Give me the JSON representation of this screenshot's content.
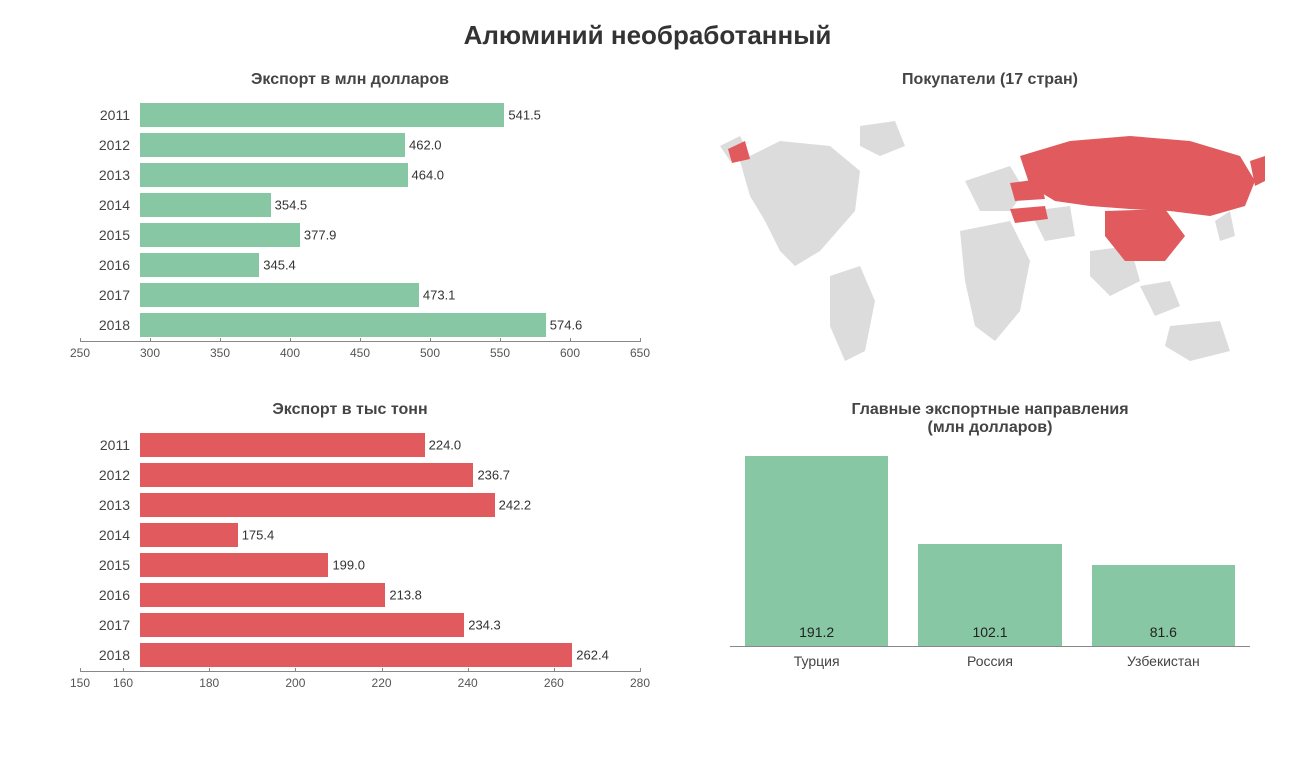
{
  "main_title": "Алюминий необработанный",
  "export_usd": {
    "title": "Экспорт в млн долларов",
    "type": "horizontal-bar",
    "categories": [
      "2011",
      "2012",
      "2013",
      "2014",
      "2015",
      "2016",
      "2017",
      "2018"
    ],
    "values": [
      541.5,
      462.0,
      464.0,
      354.5,
      377.9,
      345.4,
      473.1,
      574.6
    ],
    "value_labels": [
      "541.5",
      "462.0",
      "464.0",
      "354.5",
      "377.9",
      "345.4",
      "473.1",
      "574.6"
    ],
    "bar_color": "#87c7a3",
    "xlim": [
      250,
      650
    ],
    "xticks": [
      250,
      300,
      350,
      400,
      450,
      500,
      550,
      600,
      650
    ],
    "xtick_labels": [
      "250",
      "300",
      "350",
      "400",
      "450",
      "500",
      "550",
      "600",
      "650"
    ],
    "label_fontsize": 14,
    "value_fontsize": 13,
    "axis_color": "#888888",
    "background_color": "#ffffff"
  },
  "export_tons": {
    "title": "Экспорт в тыс тонн",
    "type": "horizontal-bar",
    "categories": [
      "2011",
      "2012",
      "2013",
      "2014",
      "2015",
      "2016",
      "2017",
      "2018"
    ],
    "values": [
      224.0,
      236.7,
      242.2,
      175.4,
      199.0,
      213.8,
      234.3,
      262.4
    ],
    "value_labels": [
      "224.0",
      "236.7",
      "242.2",
      "175.4",
      "199.0",
      "213.8",
      "234.3",
      "262.4"
    ],
    "bar_color": "#e05a5e",
    "xlim": [
      150,
      280
    ],
    "xticks": [
      150,
      160,
      180,
      200,
      220,
      240,
      260,
      280
    ],
    "xtick_labels": [
      "150",
      "160",
      "180",
      "200",
      "220",
      "240",
      "260",
      "280"
    ],
    "label_fontsize": 14,
    "value_fontsize": 13,
    "axis_color": "#888888",
    "background_color": "#ffffff"
  },
  "buyers_map": {
    "title": "Покупатели (17 стран)",
    "land_color": "#dcdcdc",
    "highlight_color": "#e05a5e",
    "highlighted_description": "Россия, Китай, Турция и соседние страны выделены красным"
  },
  "export_directions": {
    "title_line1": "Главные экспортные направления",
    "title_line2": "(млн долларов)",
    "type": "bar",
    "categories": [
      "Турция",
      "Россия",
      "Узбекистан"
    ],
    "values": [
      191.2,
      102.1,
      81.6
    ],
    "value_labels": [
      "191.2",
      "102.1",
      "81.6"
    ],
    "bar_color": "#87c7a3",
    "ymax": 200,
    "label_fontsize": 14,
    "value_fontsize": 14,
    "axis_color": "#888888",
    "background_color": "#ffffff"
  }
}
